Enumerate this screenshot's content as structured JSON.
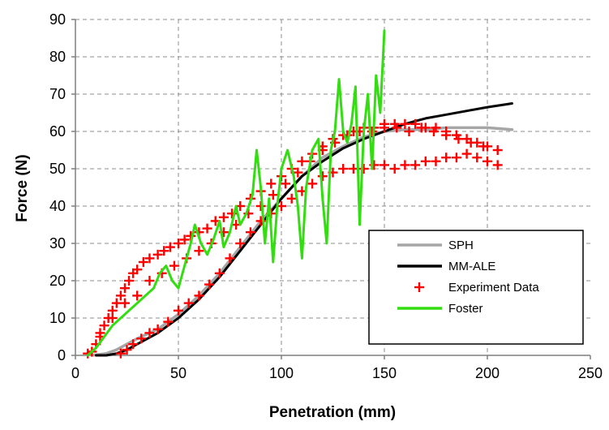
{
  "chart_data": {
    "type": "line",
    "title": "",
    "xlabel": "Penetration (mm)",
    "ylabel": "Force (N)",
    "xlim": [
      0,
      250
    ],
    "ylim": [
      0,
      90
    ],
    "xticks": [
      "0",
      "50",
      "100",
      "150",
      "200",
      "250"
    ],
    "yticks": [
      "0",
      "10",
      "20",
      "30",
      "40",
      "50",
      "60",
      "70",
      "80",
      "90"
    ],
    "grid": true,
    "legend_position": "lower-right",
    "series": [
      {
        "name": "SPH",
        "kind": "line",
        "color": "#a6a6a6",
        "points": [
          [
            8,
            0
          ],
          [
            15,
            0.5
          ],
          [
            20,
            1.5
          ],
          [
            25,
            3
          ],
          [
            30,
            4.5
          ],
          [
            40,
            7
          ],
          [
            50,
            11
          ],
          [
            60,
            16
          ],
          [
            70,
            22
          ],
          [
            80,
            29
          ],
          [
            90,
            36
          ],
          [
            100,
            42
          ],
          [
            110,
            48
          ],
          [
            120,
            53
          ],
          [
            130,
            56
          ],
          [
            140,
            58.5
          ],
          [
            150,
            60
          ],
          [
            160,
            60.5
          ],
          [
            170,
            60.5
          ],
          [
            180,
            61
          ],
          [
            190,
            61
          ],
          [
            200,
            61
          ],
          [
            212,
            60.5
          ]
        ]
      },
      {
        "name": "MM-ALE",
        "kind": "line",
        "color": "#000000",
        "points": [
          [
            10,
            0
          ],
          [
            15,
            0
          ],
          [
            20,
            0.5
          ],
          [
            25,
            1.5
          ],
          [
            30,
            3
          ],
          [
            40,
            6
          ],
          [
            50,
            10
          ],
          [
            60,
            15
          ],
          [
            70,
            21
          ],
          [
            80,
            28
          ],
          [
            90,
            35
          ],
          [
            100,
            42
          ],
          [
            110,
            48
          ],
          [
            120,
            52
          ],
          [
            130,
            55.5
          ],
          [
            140,
            58
          ],
          [
            150,
            60
          ],
          [
            160,
            62
          ],
          [
            170,
            63.5
          ],
          [
            180,
            64.5
          ],
          [
            190,
            65.5
          ],
          [
            200,
            66.5
          ],
          [
            212,
            67.5
          ]
        ]
      },
      {
        "name": "Experiment Data",
        "kind": "scatter",
        "color": "#ff0000",
        "points": [
          [
            6,
            0.5
          ],
          [
            8,
            1
          ],
          [
            10,
            3
          ],
          [
            12,
            5
          ],
          [
            14,
            8
          ],
          [
            16,
            10
          ],
          [
            18,
            12
          ],
          [
            20,
            14
          ],
          [
            22,
            16
          ],
          [
            24,
            18
          ],
          [
            26,
            20
          ],
          [
            28,
            22
          ],
          [
            30,
            23
          ],
          [
            33,
            25
          ],
          [
            36,
            26
          ],
          [
            40,
            27
          ],
          [
            43,
            28
          ],
          [
            46,
            29
          ],
          [
            50,
            30
          ],
          [
            53,
            31
          ],
          [
            56,
            32
          ],
          [
            60,
            33
          ],
          [
            64,
            34
          ],
          [
            68,
            36
          ],
          [
            72,
            37
          ],
          [
            76,
            38
          ],
          [
            80,
            40
          ],
          [
            85,
            42
          ],
          [
            90,
            44
          ],
          [
            95,
            46
          ],
          [
            100,
            48
          ],
          [
            105,
            50
          ],
          [
            110,
            52
          ],
          [
            115,
            54
          ],
          [
            120,
            56
          ],
          [
            125,
            58
          ],
          [
            130,
            59
          ],
          [
            135,
            60
          ],
          [
            140,
            61
          ],
          [
            145,
            61
          ],
          [
            150,
            62
          ],
          [
            155,
            62
          ],
          [
            160,
            62
          ],
          [
            165,
            62
          ],
          [
            170,
            61
          ],
          [
            175,
            61
          ],
          [
            180,
            60
          ],
          [
            185,
            59
          ],
          [
            190,
            58
          ],
          [
            195,
            57
          ],
          [
            200,
            56
          ],
          [
            205,
            55
          ],
          [
            22,
            0.5
          ],
          [
            25,
            1.5
          ],
          [
            28,
            3
          ],
          [
            32,
            4.5
          ],
          [
            36,
            6
          ],
          [
            40,
            7
          ],
          [
            45,
            9
          ],
          [
            50,
            12
          ],
          [
            55,
            14
          ],
          [
            60,
            16
          ],
          [
            65,
            19
          ],
          [
            70,
            22
          ],
          [
            75,
            26
          ],
          [
            80,
            30
          ],
          [
            85,
            33
          ],
          [
            90,
            36
          ],
          [
            95,
            38
          ],
          [
            100,
            40
          ],
          [
            105,
            42
          ],
          [
            110,
            44
          ],
          [
            115,
            46
          ],
          [
            120,
            48
          ],
          [
            125,
            49
          ],
          [
            130,
            50
          ],
          [
            135,
            50
          ],
          [
            140,
            50
          ],
          [
            145,
            51
          ],
          [
            150,
            51
          ],
          [
            155,
            50
          ],
          [
            160,
            51
          ],
          [
            165,
            51
          ],
          [
            170,
            52
          ],
          [
            175,
            52
          ],
          [
            180,
            53
          ],
          [
            185,
            53
          ],
          [
            190,
            54
          ],
          [
            195,
            53
          ],
          [
            200,
            52
          ],
          [
            205,
            51
          ],
          [
            12,
            6
          ],
          [
            18,
            10
          ],
          [
            24,
            14
          ],
          [
            30,
            16
          ],
          [
            36,
            20
          ],
          [
            42,
            22
          ],
          [
            48,
            24
          ],
          [
            54,
            26
          ],
          [
            60,
            28
          ],
          [
            66,
            30
          ],
          [
            72,
            33
          ],
          [
            78,
            35
          ],
          [
            84,
            38
          ],
          [
            90,
            40
          ],
          [
            96,
            43
          ],
          [
            102,
            46
          ],
          [
            108,
            49
          ],
          [
            114,
            52
          ],
          [
            120,
            55
          ],
          [
            126,
            57
          ],
          [
            132,
            59
          ],
          [
            138,
            60
          ],
          [
            144,
            60
          ],
          [
            150,
            61
          ],
          [
            156,
            61
          ],
          [
            162,
            60
          ],
          [
            168,
            61
          ],
          [
            174,
            60
          ],
          [
            180,
            59
          ],
          [
            186,
            58
          ],
          [
            192,
            57
          ],
          [
            198,
            56
          ]
        ]
      },
      {
        "name": "Foster",
        "kind": "line",
        "color": "#33dd11",
        "points": [
          [
            6,
            0
          ],
          [
            10,
            2
          ],
          [
            14,
            5
          ],
          [
            18,
            8
          ],
          [
            22,
            10
          ],
          [
            26,
            12
          ],
          [
            30,
            14
          ],
          [
            34,
            16
          ],
          [
            38,
            18
          ],
          [
            41,
            22
          ],
          [
            44,
            24
          ],
          [
            47,
            20
          ],
          [
            50,
            18
          ],
          [
            53,
            24
          ],
          [
            56,
            30
          ],
          [
            58,
            35
          ],
          [
            61,
            30
          ],
          [
            64,
            27
          ],
          [
            67,
            31
          ],
          [
            70,
            36
          ],
          [
            72,
            29
          ],
          [
            75,
            33
          ],
          [
            78,
            40
          ],
          [
            80,
            35
          ],
          [
            83,
            38
          ],
          [
            86,
            43
          ],
          [
            88,
            55
          ],
          [
            90,
            45
          ],
          [
            92,
            30
          ],
          [
            94,
            42
          ],
          [
            96,
            25
          ],
          [
            98,
            40
          ],
          [
            100,
            50
          ],
          [
            103,
            55
          ],
          [
            106,
            48
          ],
          [
            108,
            40
          ],
          [
            110,
            26
          ],
          [
            112,
            45
          ],
          [
            115,
            55
          ],
          [
            118,
            58
          ],
          [
            120,
            42
          ],
          [
            122,
            30
          ],
          [
            124,
            55
          ],
          [
            126,
            60
          ],
          [
            128,
            74
          ],
          [
            130,
            60
          ],
          [
            132,
            57
          ],
          [
            134,
            62
          ],
          [
            136,
            72
          ],
          [
            138,
            35
          ],
          [
            140,
            60
          ],
          [
            142,
            70
          ],
          [
            144,
            50
          ],
          [
            146,
            75
          ],
          [
            148,
            65
          ],
          [
            150,
            87
          ]
        ]
      }
    ]
  }
}
